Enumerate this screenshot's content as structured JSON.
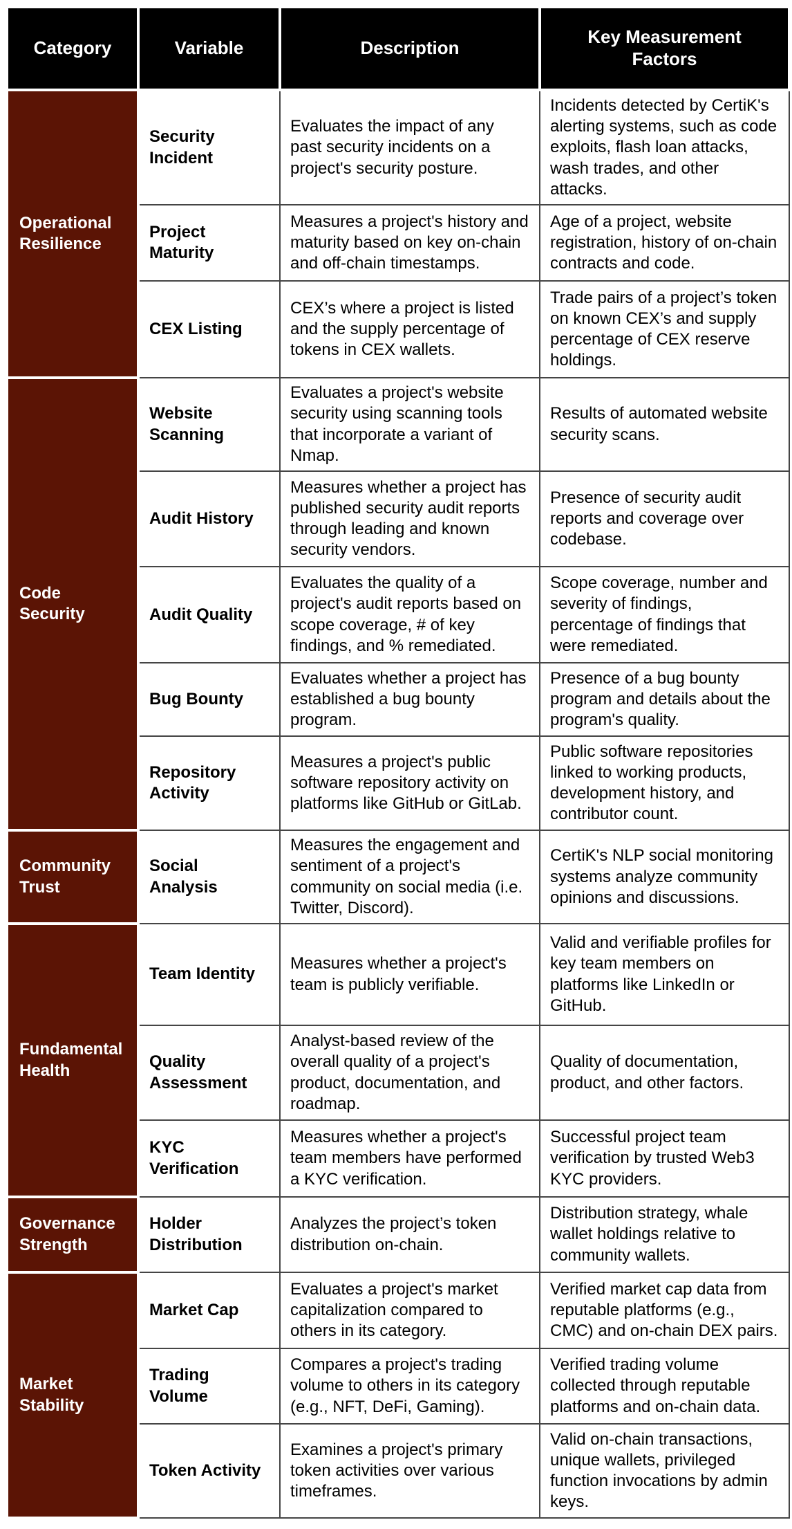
{
  "table": {
    "title": "Security score framework table",
    "headers": [
      "Category",
      "Variable",
      "Description",
      "Key Measurement\nFactors"
    ],
    "colors": {
      "header_bg": "#000000",
      "header_text": "#ffffff",
      "category_bg": "#5B1405",
      "category_text": "#ffffff",
      "body_text": "#000000",
      "border": "#454545"
    },
    "sections": [
      {
        "category": "Operational\nResilience",
        "rows": [
          {
            "variable": "Security\nIncident",
            "description": "Evaluates the impact of any past security incidents on a project's security posture.",
            "factors": "Incidents detected by CertiK's alerting systems, such as code exploits, flash loan attacks, wash trades, and other attacks."
          },
          {
            "variable": "Project\nMaturity",
            "description": "Measures a project's history and maturity based on key on-chain and off-chain timestamps.",
            "factors": "Age of a project, website registration, history of on-chain contracts and code."
          },
          {
            "variable": "CEX Listing",
            "description": "CEX’s where a project is listed and the supply percentage of tokens in CEX wallets.",
            "factors": "Trade pairs of a project’s token on known CEX’s and supply percentage of CEX reserve holdings."
          }
        ]
      },
      {
        "category": "Code\nSecurity",
        "rows": [
          {
            "variable": "Website\nScanning",
            "description": "Evaluates a project's website security using scanning tools that incorporate a variant of Nmap.",
            "factors": "Results of automated website security scans."
          },
          {
            "variable": "Audit History",
            "description": "Measures whether a project has published security audit reports through leading and known security vendors.",
            "factors": "Presence of security audit reports and coverage over codebase."
          },
          {
            "variable": "Audit Quality",
            "description": "Evaluates the quality of a project's audit reports based on scope coverage, # of key findings, and % remediated.",
            "factors": "Scope coverage, number and severity of findings, percentage of findings that were remediated."
          },
          {
            "variable": "Bug Bounty",
            "description": "Evaluates whether a project has established a bug bounty program.",
            "factors": "Presence of a bug bounty program and details about the program's quality."
          },
          {
            "variable": "Repository\nActivity",
            "description": "Measures a project's public software repository activity on platforms like GitHub or GitLab.",
            "factors": "Public software repositories linked to working products, development history, and contributor count."
          }
        ]
      },
      {
        "category": "Community\nTrust",
        "rows": [
          {
            "variable": "Social\nAnalysis",
            "description": "Measures the engagement and sentiment of a project's community on social media (i.e. Twitter, Discord).",
            "factors": "CertiK's NLP social monitoring systems analyze community opinions and discussions."
          }
        ]
      },
      {
        "category": "Fundamental\nHealth",
        "rows": [
          {
            "variable": "Team Identity",
            "description": "Measures whether a project's team is publicly verifiable.",
            "factors": "Valid and verifiable profiles for key team members on platforms like LinkedIn or GitHub."
          },
          {
            "variable": "Quality\nAssessment",
            "description": "Analyst-based review of the overall quality of a project's product, documentation, and roadmap.",
            "factors": "Quality of documentation, product, and other factors."
          },
          {
            "variable": "KYC\nVerification",
            "description": "Measures whether a project's team members have performed a KYC verification.",
            "factors": "Successful project team verification by trusted Web3 KYC providers."
          }
        ]
      },
      {
        "category": "Governance\nStrength",
        "rows": [
          {
            "variable": "Holder\nDistribution",
            "description": "Analyzes the project’s token distribution on-chain.",
            "factors": "Distribution strategy, whale wallet holdings relative to community wallets."
          }
        ]
      },
      {
        "category": "Market\nStability",
        "rows": [
          {
            "variable": "Market Cap",
            "description": "Evaluates a project's market capitalization compared to others in its category.",
            "factors": "Verified market cap data from reputable platforms (e.g., CMC) and on-chain DEX pairs."
          },
          {
            "variable": "Trading\nVolume",
            "description": "Compares a project's trading volume to others in its category (e.g., NFT, DeFi, Gaming).",
            "factors": "Verified trading volume collected through reputable platforms and on-chain data."
          },
          {
            "variable": "Token Activity",
            "description": "Examines a project's primary token activities over various timeframes.",
            "factors": "Valid on-chain transactions, unique wallets, privileged function invocations by admin keys."
          }
        ]
      }
    ]
  }
}
